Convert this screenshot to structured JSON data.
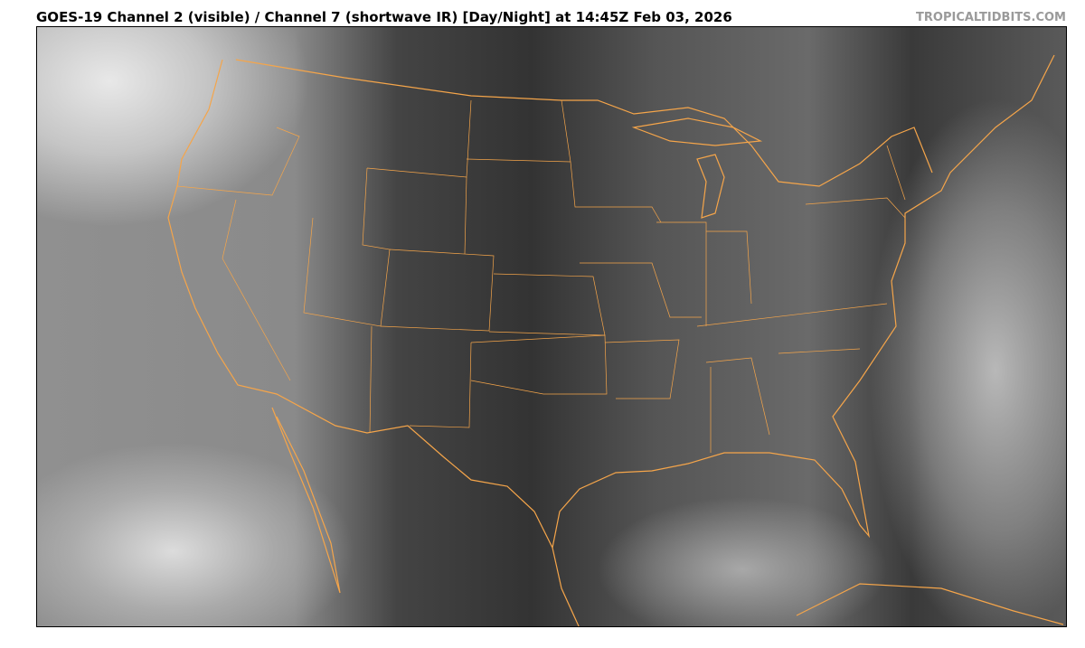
{
  "header": {
    "title": "GOES-19 Channel 2 (visible) / Channel 7 (shortwave IR) [Day/Night] at 14:45Z Feb 03, 2026",
    "credit": "TROPICALTIDBITS.COM"
  },
  "map": {
    "type": "satellite-imagery",
    "region": "Continental United States",
    "border_color": "#f5a54a"
  }
}
